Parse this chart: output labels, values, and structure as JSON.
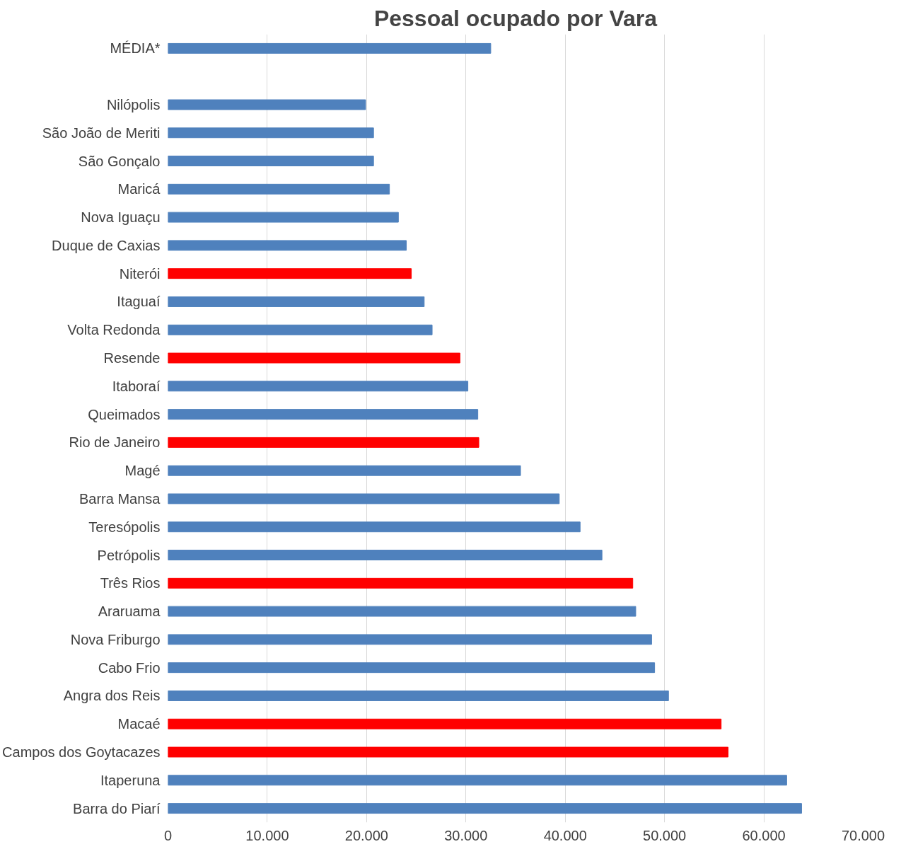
{
  "chart_data": {
    "type": "bar",
    "orientation": "horizontal",
    "title": "Pessoal ocupado por Vara",
    "categories": [
      "MÉDIA*",
      null,
      "Nilópolis",
      "São João de Meriti",
      "São Gonçalo",
      "Maricá",
      "Nova Iguaçu",
      "Duque de Caxias",
      "Niterói",
      "Itaguaí",
      "Volta Redonda",
      "Resende",
      "Itaboraí",
      "Queimados",
      "Rio de Janeiro",
      "Magé",
      "Barra Mansa",
      "Teresópolis",
      "Petrópolis",
      "Três Rios",
      "Araruama",
      "Nova Friburgo",
      "Cabo Frio",
      "Angra dos Reis",
      "Macaé",
      "Campos dos Goytacazes",
      "Itaperuna",
      "Barra do Piarí"
    ],
    "values": [
      32500,
      null,
      19900,
      20700,
      20700,
      22300,
      23200,
      24000,
      24500,
      25800,
      26600,
      29400,
      30200,
      31200,
      31300,
      35500,
      39400,
      41500,
      43700,
      46800,
      47100,
      48700,
      49000,
      50400,
      55700,
      56400,
      62300,
      63800
    ],
    "colors": [
      "#4f81bd",
      "#4f81bd",
      "#4f81bd",
      "#4f81bd",
      "#4f81bd",
      "#4f81bd",
      "#4f81bd",
      "#4f81bd",
      "#ff0000",
      "#4f81bd",
      "#4f81bd",
      "#ff0000",
      "#4f81bd",
      "#4f81bd",
      "#ff0000",
      "#4f81bd",
      "#4f81bd",
      "#4f81bd",
      "#4f81bd",
      "#ff0000",
      "#4f81bd",
      "#4f81bd",
      "#4f81bd",
      "#4f81bd",
      "#ff0000",
      "#ff0000",
      "#4f81bd",
      "#4f81bd"
    ],
    "xlim": [
      0,
      70000
    ],
    "xticks": [
      0,
      {
        "value": 10000,
        "label": "10.000"
      },
      {
        "value": 20000,
        "label": "20.000"
      },
      {
        "value": 30000,
        "label": "30.000"
      },
      {
        "value": 40000,
        "label": "40.000"
      },
      {
        "value": 50000,
        "label": "50.000"
      },
      {
        "value": 60000,
        "label": "60.000"
      },
      {
        "value": 70000,
        "label": "70.000"
      }
    ],
    "grid": "x"
  }
}
